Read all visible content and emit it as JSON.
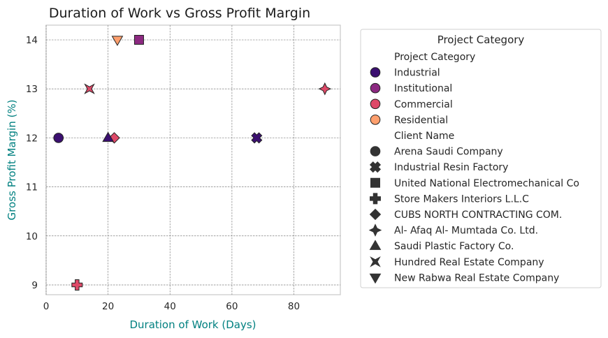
{
  "chart_data": {
    "type": "scatter",
    "title": "Duration of Work vs Gross Profit Margin",
    "xlabel": "Duration of Work (Days)",
    "ylabel": "Gross Profit Margin (%)",
    "xlim": [
      0,
      95
    ],
    "ylim": [
      8.8,
      14.3
    ],
    "xticks": [
      0,
      20,
      40,
      60,
      80
    ],
    "yticks": [
      9,
      10,
      11,
      12,
      13,
      14
    ],
    "grid": true,
    "points": [
      {
        "x": 4,
        "y": 12,
        "category": "Industrial",
        "client": "Arena Saudi Company"
      },
      {
        "x": 68,
        "y": 12,
        "category": "Industrial",
        "client": "Industrial Resin Factory"
      },
      {
        "x": 30,
        "y": 14,
        "category": "Institutional",
        "client": "United National Electromechanical Co"
      },
      {
        "x": 10,
        "y": 9,
        "category": "Commercial",
        "client": "Store Makers Interiors L.L.C"
      },
      {
        "x": 22,
        "y": 12,
        "category": "Commercial",
        "client": "CUBS NORTH CONTRACTING COM."
      },
      {
        "x": 90,
        "y": 13,
        "category": "Commercial",
        "client": "Al- Afaq Al- Mumtada Co. Ltd."
      },
      {
        "x": 20,
        "y": 12,
        "category": "Industrial",
        "client": "Saudi Plastic Factory Co."
      },
      {
        "x": 14,
        "y": 13,
        "category": "Commercial",
        "client": "Hundred Real Estate Company"
      },
      {
        "x": 23,
        "y": 14,
        "category": "Residential",
        "client": "New Rabwa Real Estate Company"
      }
    ],
    "legend": {
      "title": "Project Category",
      "placement": "outside-right",
      "hue_header": "Project Category",
      "categories": [
        {
          "name": "Industrial",
          "color": "#3b0f70"
        },
        {
          "name": "Institutional",
          "color": "#8c2981"
        },
        {
          "name": "Commercial",
          "color": "#de4968"
        },
        {
          "name": "Residential",
          "color": "#fe9f6d"
        }
      ],
      "style_header": "Client Name",
      "clients": [
        {
          "name": "Arena Saudi Company",
          "marker": "circle"
        },
        {
          "name": "Industrial Resin Factory",
          "marker": "x"
        },
        {
          "name": "United National Electromechanical Co",
          "marker": "square"
        },
        {
          "name": "Store Makers Interiors L.L.C",
          "marker": "plus"
        },
        {
          "name": "CUBS NORTH CONTRACTING COM.",
          "marker": "diamond"
        },
        {
          "name": "Al- Afaq Al- Mumtada Co. Ltd.",
          "marker": "star4"
        },
        {
          "name": "Saudi Plastic Factory Co.",
          "marker": "triangle-up"
        },
        {
          "name": "Hundred Real Estate Company",
          "marker": "bowtie"
        },
        {
          "name": "New Rabwa Real Estate Company",
          "marker": "triangle-down"
        }
      ]
    },
    "colors": {
      "marker_edge": "#222222",
      "legend_marker": "#333333",
      "grid": "#808080",
      "axis_label": "#008080"
    }
  }
}
